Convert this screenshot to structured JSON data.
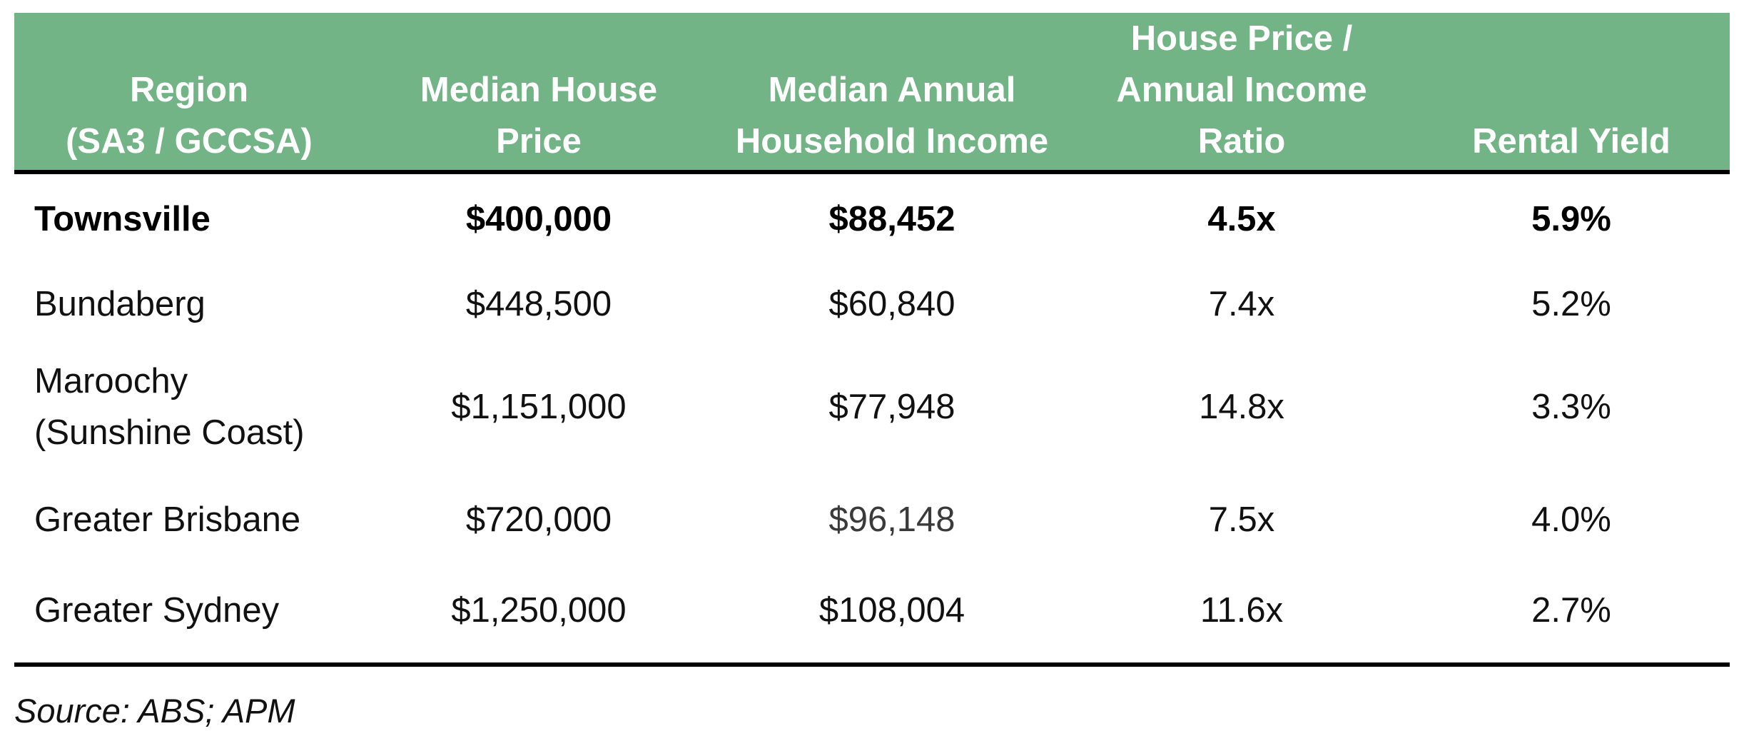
{
  "table": {
    "headers": [
      {
        "lines": [
          "Region",
          "(SA3 / GCCSA)"
        ]
      },
      {
        "lines": [
          "Median House",
          "Price"
        ]
      },
      {
        "lines": [
          "Median Annual",
          "Household Income"
        ]
      },
      {
        "lines": [
          "House Price /",
          "Annual Income",
          "Ratio"
        ]
      },
      {
        "lines": [
          "Rental Yield"
        ]
      }
    ],
    "rows": [
      {
        "region": [
          "Townsville"
        ],
        "house_price": "$400,000",
        "income": "$88,452",
        "ratio": "4.5x",
        "yield": "5.9%"
      },
      {
        "region": [
          "Bundaberg"
        ],
        "house_price": "$448,500",
        "income": "$60,840",
        "ratio": "7.4x",
        "yield": "5.2%"
      },
      {
        "region": [
          "Maroochy",
          "(Sunshine Coast)"
        ],
        "house_price": "$1,151,000",
        "income": "$77,948",
        "ratio": "14.8x",
        "yield": "3.3%"
      },
      {
        "region": [
          "Greater Brisbane"
        ],
        "house_price": "$720,000",
        "income": "$96,148",
        "ratio": "7.5x",
        "yield": "4.0%"
      },
      {
        "region": [
          "Greater Sydney"
        ],
        "house_price": "$1,250,000",
        "income": "$108,004",
        "ratio": "11.6x",
        "yield": "2.7%"
      }
    ]
  },
  "source": "Source: ABS; APM",
  "colors": {
    "header_background": "#72b486",
    "header_text": "#ffffff",
    "rule": "#000000"
  }
}
